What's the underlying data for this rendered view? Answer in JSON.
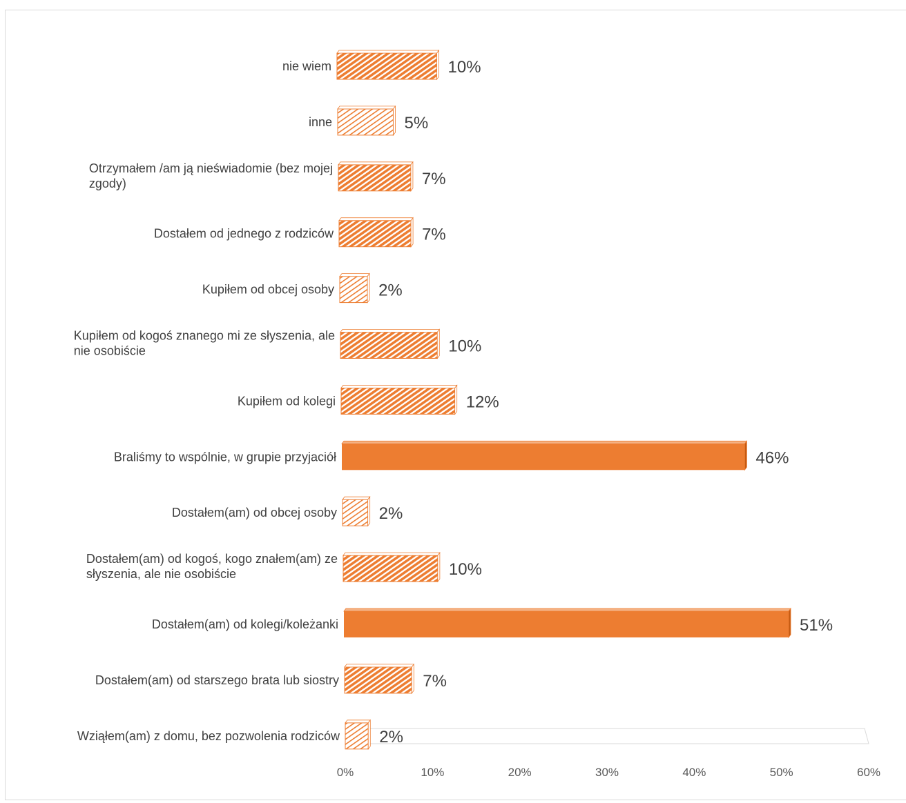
{
  "chart_data": {
    "type": "bar",
    "orientation": "horizontal",
    "categories": [
      "nie wiem",
      "inne",
      "Otrzymałem /am ją nieświadomie (bez mojej zgody)",
      "Dostałem od jednego z rodziców",
      "Kupiłem od obcej osoby",
      "Kupiłem od kogoś znanego mi ze słyszenia, ale nie osobiście",
      "Kupiłem od kolegi",
      "Braliśmy to wspólnie, w grupie przyjaciół",
      "Dostałem(am) od obcej osoby",
      "Dostałem(am) od kogoś, kogo znałem(am) ze słyszenia, ale nie osobiście",
      "Dostałem(am) od kolegi/koleżanki",
      "Dostałem(am) od starszego brata lub siostry",
      "Wziąłem(am) z domu, bez pozwolenia rodziców"
    ],
    "category_lines": [
      [
        "nie wiem"
      ],
      [
        "inne"
      ],
      [
        "Otrzymałem /am ją nieświadomie (bez mojej",
        "zgody)"
      ],
      [
        "Dostałem od jednego z rodziców"
      ],
      [
        "Kupiłem od obcej osoby"
      ],
      [
        "Kupiłem od kogoś znanego mi ze słyszenia, ale",
        "nie osobiście"
      ],
      [
        "Kupiłem od kolegi"
      ],
      [
        "Braliśmy to wspólnie, w grupie przyjaciół"
      ],
      [
        "Dostałem(am) od obcej osoby"
      ],
      [
        "Dostałem(am) od kogoś, kogo znałem(am) ze",
        "słyszenia, ale nie osobiście"
      ],
      [
        "Dostałem(am) od kolegi/koleżanki"
      ],
      [
        "Dostałem(am) od starszego brata lub siostry"
      ],
      [
        "Wziąłem(am) z domu, bez pozwolenia rodziców"
      ]
    ],
    "values": [
      10,
      5,
      7,
      7,
      2,
      10,
      12,
      46,
      2,
      10,
      51,
      7,
      2
    ],
    "value_labels": [
      "10%",
      "5%",
      "7%",
      "7%",
      "2%",
      "10%",
      "12%",
      "46%",
      "2%",
      "10%",
      "51%",
      "7%",
      "2%"
    ],
    "xlim": [
      0,
      60
    ],
    "x_ticks": [
      "0%",
      "10%",
      "20%",
      "30%",
      "40%",
      "50%",
      "60%"
    ],
    "x_tick_values": [
      0,
      10,
      20,
      30,
      40,
      50,
      60
    ],
    "gridlines": false,
    "legend": "none",
    "bar_color": "#ED7D31",
    "bar_style": [
      "hatched",
      "hatched-light",
      "hatched",
      "hatched",
      "hatched-light",
      "hatched",
      "hatched",
      "solid",
      "hatched-light",
      "hatched",
      "solid",
      "hatched",
      "hatched-light"
    ]
  }
}
